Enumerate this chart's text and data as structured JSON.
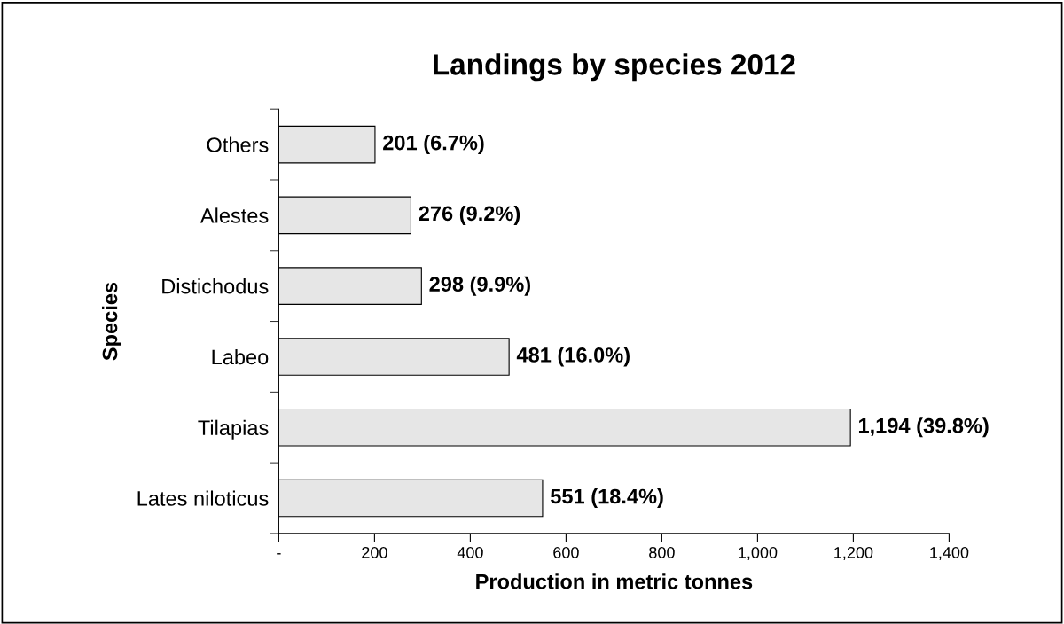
{
  "chart_data": {
    "type": "bar",
    "orientation": "horizontal",
    "title": "Landings by species 2012",
    "xlabel": "Production in metric tonnes",
    "ylabel": "Species",
    "categories": [
      "Others",
      "Alestes",
      "Distichodus",
      "Labeo",
      "Tilapias",
      "Lates niloticus"
    ],
    "values": [
      201,
      276,
      298,
      481,
      1194,
      551
    ],
    "value_labels": [
      "201 (6.7%)",
      "276 (9.2%)",
      "298 (9.9%)",
      "481 (16.0%)",
      "1,194 (39.8%)",
      "551 (18.4%)"
    ],
    "color": "#e6e6e6",
    "xlim": [
      0,
      1400
    ],
    "xticks": [
      {
        "value": 0,
        "label": "-"
      },
      200,
      400,
      600,
      800,
      {
        "value": 1000,
        "label": "1,000"
      },
      {
        "value": 1200,
        "label": "1,200"
      },
      {
        "value": 1400,
        "label": "1,400"
      }
    ],
    "grid": false,
    "legend": false
  }
}
